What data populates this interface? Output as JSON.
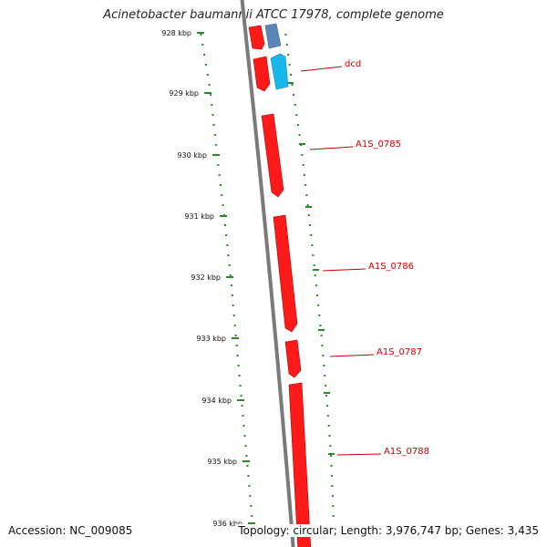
{
  "title": "Acinetobacter baumannii ATCC 17978, complete genome",
  "accession_text": "Accession: NC_009085",
  "summary_text": "Topology: circular; Length: 3,976,747 bp; Genes: 3,435",
  "colors": {
    "backbone": "#7a7a7a",
    "gc_dots": "#2a8a2a",
    "forward_gene": "#ff1a1a",
    "reverse_gene_dark": "#5b86b8",
    "reverse_gene_light": "#19b8ec",
    "label": "#cc0000"
  },
  "scale_labels": [
    "928 kbp",
    "929 kbp",
    "930 kbp",
    "931 kbp",
    "932 kbp",
    "933 kbp",
    "934 kbp",
    "935 kbp",
    "936 kbp"
  ],
  "gene_labels": [
    "dcd",
    "A1S_0785",
    "A1S_0786",
    "A1S_0787",
    "A1S_0788"
  ]
}
